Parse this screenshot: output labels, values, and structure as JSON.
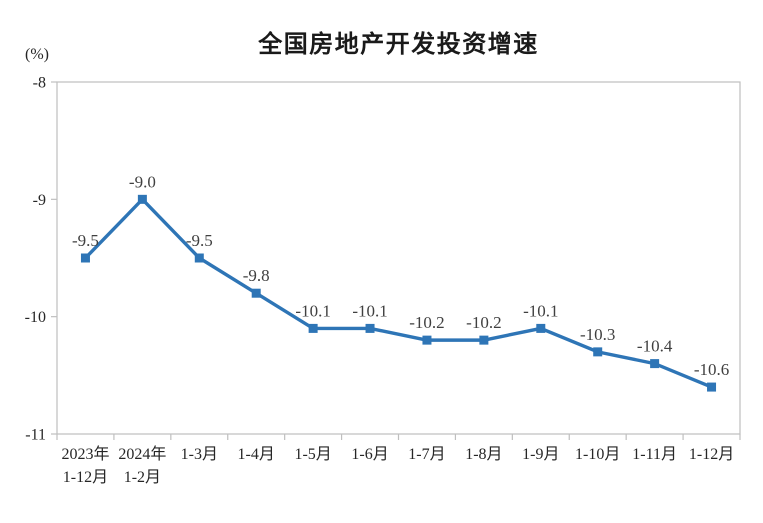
{
  "chart": {
    "title": "全国房地产开发投资增速",
    "unit_label": "(%)"
  },
  "chart_data": {
    "type": "line",
    "title": "全国房地产开发投资增速",
    "ylabel": "(%)",
    "xlabel": "",
    "ylim": [
      -11,
      -8
    ],
    "yticks": [
      -8,
      -9,
      -10,
      -11
    ],
    "ytick_labels": [
      "-8",
      "-9",
      "-10",
      "-11"
    ],
    "grid": false,
    "legend": false,
    "categories": [
      [
        "2023年",
        "1-12月"
      ],
      [
        "2024年",
        "1-2月"
      ],
      [
        "1-3月"
      ],
      [
        "1-4月"
      ],
      [
        "1-5月"
      ],
      [
        "1-6月"
      ],
      [
        "1-7月"
      ],
      [
        "1-8月"
      ],
      [
        "1-9月"
      ],
      [
        "1-10月"
      ],
      [
        "1-11月"
      ],
      [
        "1-12月"
      ]
    ],
    "series": [
      {
        "name": "全国房地产开发投资增速",
        "values": [
          -9.5,
          -9.0,
          -9.5,
          -9.8,
          -10.1,
          -10.1,
          -10.2,
          -10.2,
          -10.1,
          -10.3,
          -10.4,
          -10.6
        ],
        "labels": [
          "-9.5",
          "-9.0",
          "-9.5",
          "-9.8",
          "-10.1",
          "-10.1",
          "-10.2",
          "-10.2",
          "-10.1",
          "-10.3",
          "-10.4",
          "-10.6"
        ]
      }
    ],
    "colors": {
      "line": "#2E75B6",
      "marker": "#2E75B6",
      "data_label": "#404040",
      "axis": "#BFBFBF",
      "tick_label": "#262626",
      "title": "#1A1A1A",
      "background": "#FFFFFF"
    }
  }
}
